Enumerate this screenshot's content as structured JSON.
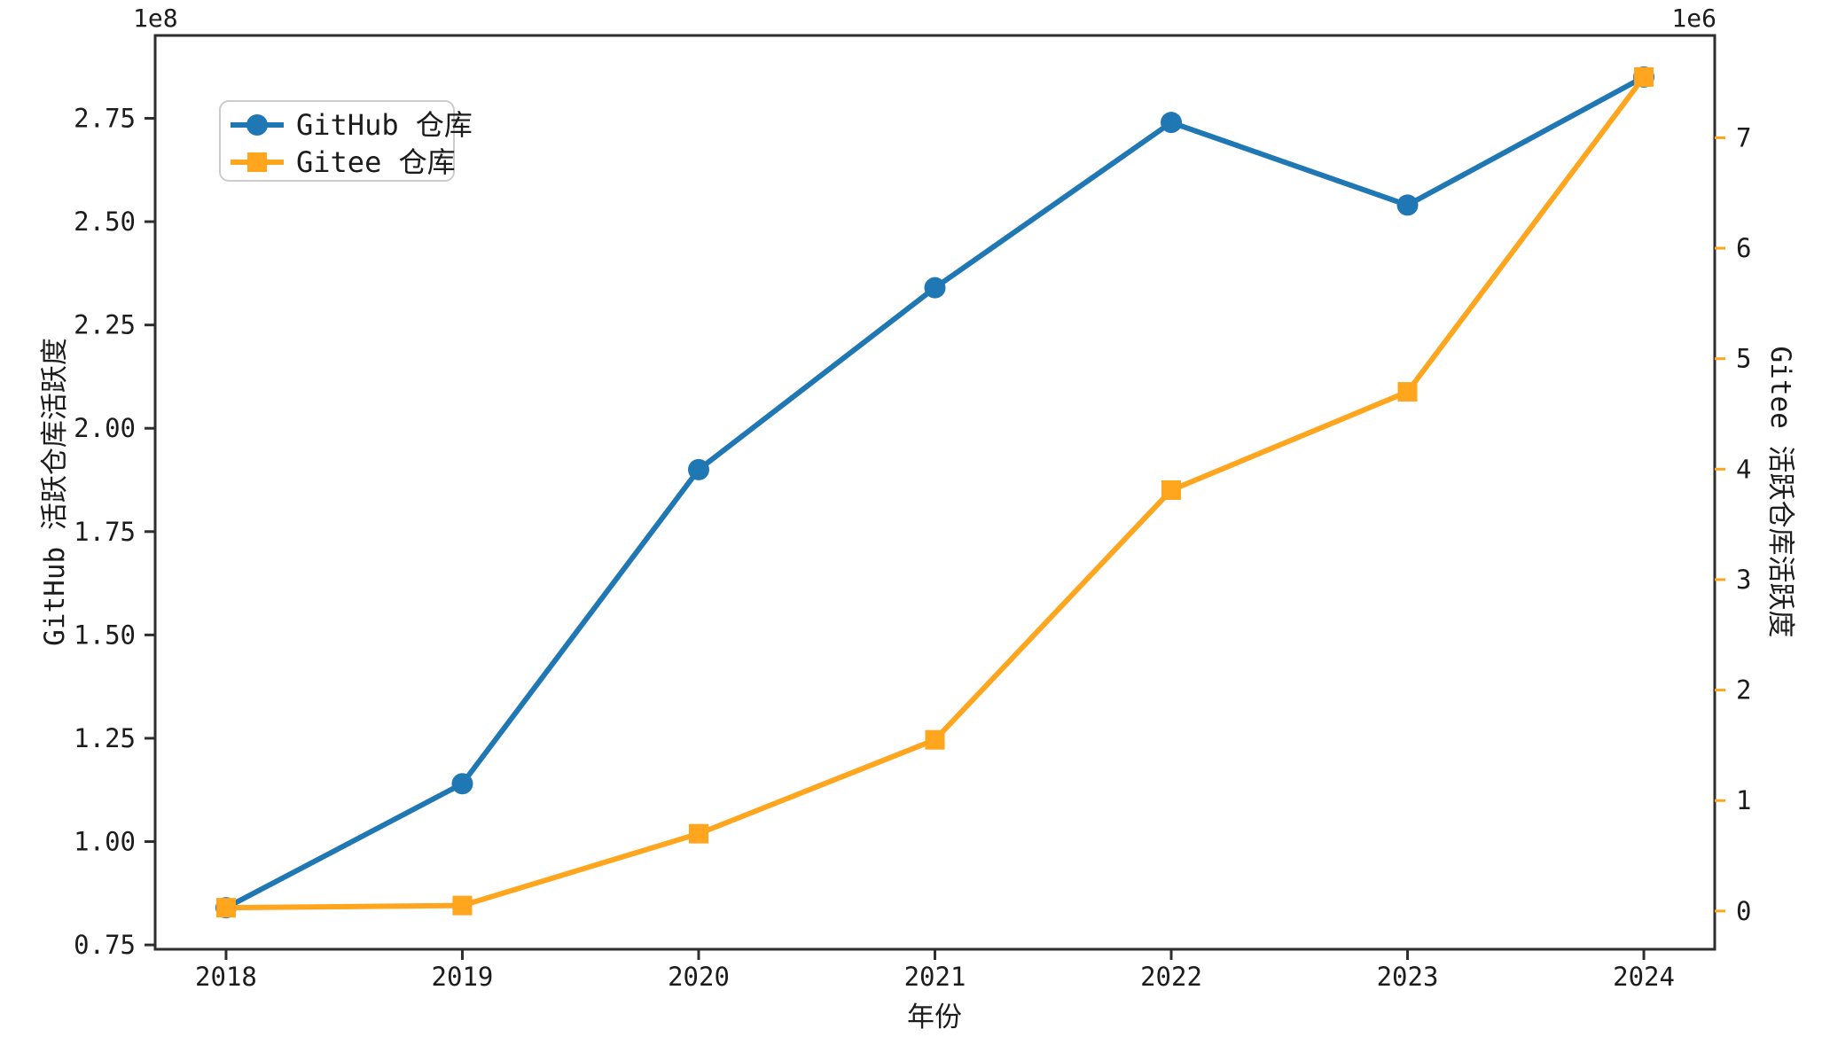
{
  "figure": {
    "background": "#ffffff",
    "frame_color": "#2e2e2e",
    "text_color": "#1c1c1c",
    "legend_border_color": "#cccccc"
  },
  "chart_data": {
    "type": "line",
    "title": "",
    "x": [
      2018,
      2019,
      2020,
      2021,
      2022,
      2023,
      2024
    ],
    "x_axis": {
      "label": "年份",
      "tick_labels": [
        "2018",
        "2019",
        "2020",
        "2021",
        "2022",
        "2023",
        "2024"
      ],
      "lim": [
        2017.7,
        2024.3
      ]
    },
    "left_axis": {
      "label": "GitHub 活跃仓库活跃度",
      "scale_label": "1e8",
      "ticks": [
        0.75,
        1.0,
        1.25,
        1.5,
        1.75,
        2.0,
        2.25,
        2.5,
        2.75
      ],
      "tick_labels": [
        "0.75",
        "1.00",
        "1.25",
        "1.50",
        "1.75",
        "2.00",
        "2.25",
        "2.50",
        "2.75"
      ],
      "lim": [
        0.7395,
        2.9505
      ],
      "tick_color": "#2e2e2e"
    },
    "right_axis": {
      "label": "Gitee 活跃仓库活跃度",
      "scale_label": "1e6",
      "ticks": [
        0,
        1,
        2,
        3,
        4,
        5,
        6,
        7
      ],
      "tick_labels": [
        "0",
        "1",
        "2",
        "3",
        "4",
        "5",
        "6",
        "7"
      ],
      "lim": [
        -0.346,
        7.926
      ],
      "tick_color": "#ffa51e"
    },
    "series": [
      {
        "name": "GitHub 仓库",
        "axis": "left",
        "color": "#1f77b4",
        "marker": "circle",
        "values": [
          0.84,
          1.14,
          1.9,
          2.34,
          2.74,
          2.54,
          2.85
        ]
      },
      {
        "name": "Gitee 仓库",
        "axis": "right",
        "color": "#ffa51e",
        "marker": "square",
        "values": [
          0.03,
          0.05,
          0.7,
          1.55,
          3.81,
          4.7,
          7.55
        ]
      }
    ],
    "legend": {
      "position": "upper left",
      "entries": [
        "GitHub 仓库",
        "Gitee 仓库"
      ]
    },
    "grid": false
  }
}
